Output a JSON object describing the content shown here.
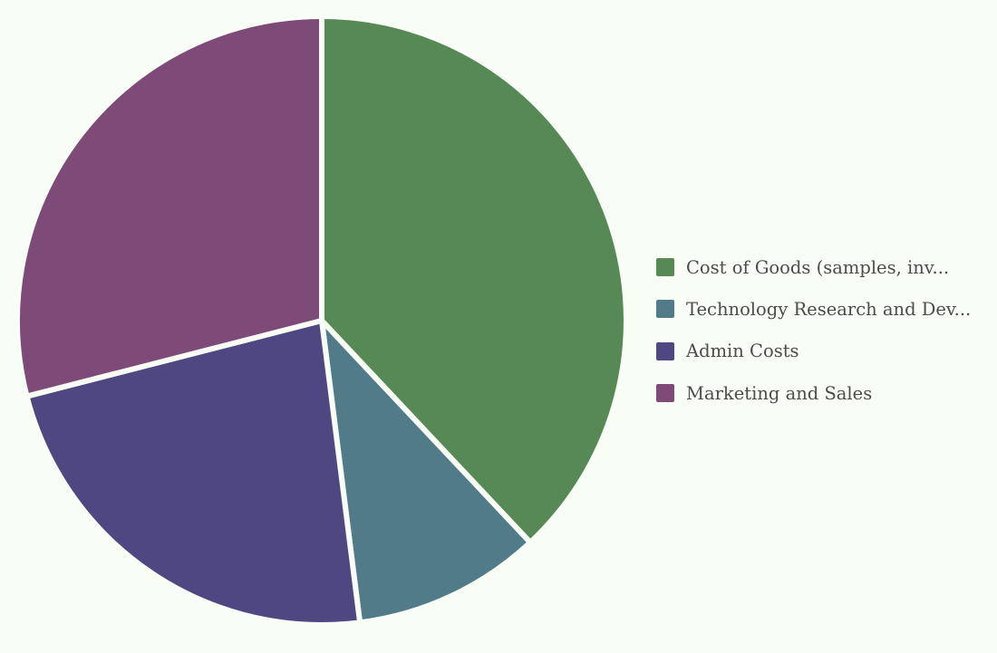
{
  "chart_data": {
    "type": "pie",
    "categories": [
      "Cost of Goods (samples, inv...",
      "Technology Research and Dev...",
      "Admin Costs",
      "Marketing and Sales"
    ],
    "values": [
      38,
      10,
      23,
      29
    ],
    "colors": [
      "#578956",
      "#527b89",
      "#4f4782",
      "#7e4a77"
    ],
    "start_angle_deg": 0,
    "direction": "clockwise",
    "legend_position": "right"
  }
}
